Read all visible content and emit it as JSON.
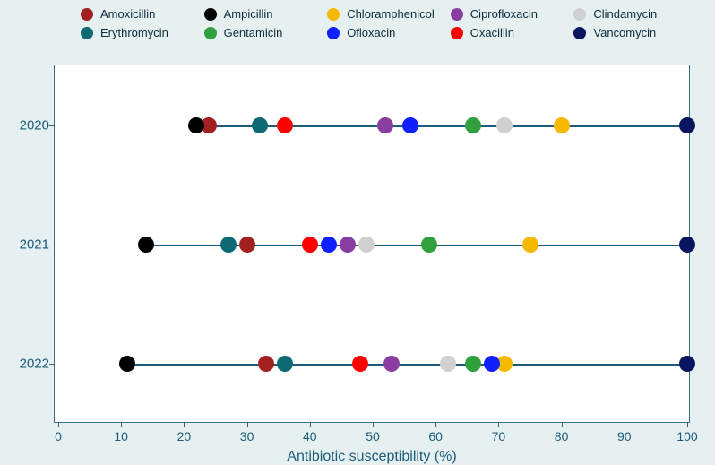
{
  "chart": {
    "type": "dot-strip",
    "background_color": "#e6f0f0",
    "plot_background": "#ffffff",
    "axis_color": "#2a6280",
    "text_color": "#1a5c7a",
    "dot_radius": 9,
    "x_axis": {
      "title": "Antibiotic susceptibility (%)",
      "min": 0,
      "max": 100,
      "tick_step": 10,
      "title_fontsize": 16,
      "label_fontsize": 14
    },
    "categories": [
      "2020",
      "2021",
      "2022"
    ],
    "series": [
      {
        "name": "Amoxicillin",
        "color": "#a32020",
        "values": {
          "2020": 24,
          "2021": 30,
          "2022": 33
        }
      },
      {
        "name": "Ampicillin",
        "color": "#000000",
        "values": {
          "2020": 22,
          "2021": 14,
          "2022": 11
        }
      },
      {
        "name": "Chloramphenicol",
        "color": "#f5b800",
        "values": {
          "2020": 80,
          "2021": 75,
          "2022": 71
        }
      },
      {
        "name": "Ciprofloxacin",
        "color": "#8a3fa0",
        "values": {
          "2020": 52,
          "2021": 46,
          "2022": 53
        }
      },
      {
        "name": "Clindamycin",
        "color": "#d0d0d0",
        "values": {
          "2020": 71,
          "2021": 49,
          "2022": 62
        }
      },
      {
        "name": "Erythromycin",
        "color": "#0d6a74",
        "values": {
          "2020": 32,
          "2021": 27,
          "2022": 36
        }
      },
      {
        "name": "Gentamicin",
        "color": "#2fa03b",
        "values": {
          "2020": 66,
          "2021": 59,
          "2022": 66
        }
      },
      {
        "name": "Ofloxacin",
        "color": "#1020ff",
        "values": {
          "2020": 56,
          "2021": 43,
          "2022": 69
        }
      },
      {
        "name": "Oxacillin",
        "color": "#ff0000",
        "values": {
          "2020": 36,
          "2021": 40,
          "2022": 48
        }
      },
      {
        "name": "Vancomycin",
        "color": "#0a1560",
        "values": {
          "2020": 100,
          "2021": 100,
          "2022": 100
        }
      }
    ],
    "row_line_color": "#1a5c7a",
    "legend": {
      "columns": 5,
      "fontsize": 13,
      "swatch_size": 14
    }
  }
}
